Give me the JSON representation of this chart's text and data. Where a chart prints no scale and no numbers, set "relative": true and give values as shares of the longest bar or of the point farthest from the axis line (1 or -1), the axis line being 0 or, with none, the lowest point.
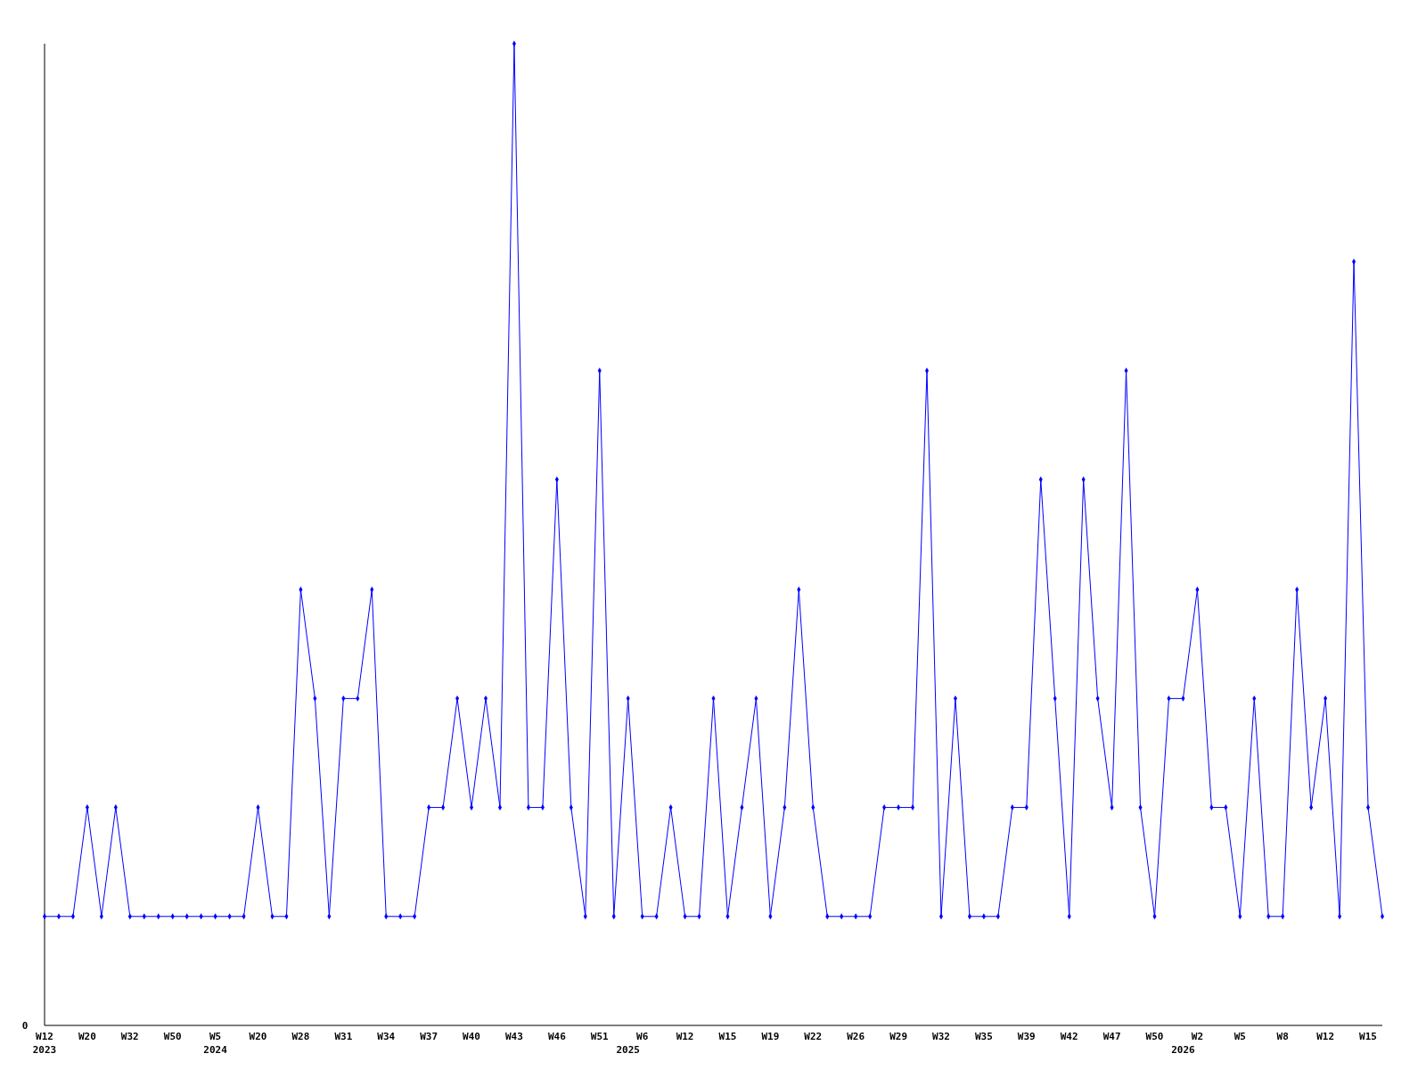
{
  "chart_data": {
    "type": "line",
    "relative": true,
    "marker": "diamond",
    "line_style": "solid",
    "annotations": [
      "0"
    ],
    "categories": [
      "W12\n2023",
      null,
      null,
      "W20",
      null,
      null,
      "W32",
      null,
      null,
      "W50",
      null,
      null,
      "W5\n2024",
      null,
      null,
      "W20",
      null,
      null,
      "W28",
      null,
      null,
      "W31",
      null,
      null,
      "W34",
      null,
      null,
      "W37",
      null,
      null,
      "W40",
      null,
      null,
      "W43",
      null,
      null,
      "W46",
      null,
      null,
      "W51",
      null,
      "\n2025",
      "W6",
      null,
      null,
      "W12",
      null,
      null,
      "W15",
      null,
      null,
      "W19",
      null,
      null,
      "W22",
      null,
      null,
      "W26",
      null,
      null,
      "W29",
      null,
      null,
      "W32",
      null,
      null,
      "W35",
      null,
      null,
      "W39",
      null,
      null,
      "W42",
      null,
      null,
      "W47",
      null,
      null,
      "W50",
      null,
      "\n2026",
      "W2",
      null,
      null,
      "W5",
      null,
      null,
      "W8",
      null,
      null,
      "W12",
      null,
      null,
      "W15",
      null
    ],
    "series": [
      {
        "color": "#0000ff",
        "values": [
          0.111,
          0.111,
          0.111,
          0.222,
          0.111,
          0.222,
          0.111,
          0.111,
          0.111,
          0.111,
          0.111,
          0.111,
          0.111,
          0.111,
          0.111,
          0.222,
          0.111,
          0.111,
          0.444,
          0.333,
          0.111,
          0.333,
          0.333,
          0.444,
          0.111,
          0.111,
          0.111,
          0.222,
          0.222,
          0.333,
          0.222,
          0.333,
          0.222,
          1,
          0.222,
          0.222,
          0.556,
          0.222,
          0.111,
          0.667,
          0.111,
          0.333,
          0.111,
          0.111,
          0.222,
          0.111,
          0.111,
          0.333,
          0.111,
          0.222,
          0.333,
          0.111,
          0.222,
          0.444,
          0.222,
          0.111,
          0.111,
          0.111,
          0.111,
          0.222,
          0.222,
          0.222,
          0.667,
          0.111,
          0.333,
          0.111,
          0.111,
          0.111,
          0.222,
          0.222,
          0.556,
          0.333,
          0.111,
          0.556,
          0.333,
          0.222,
          0.667,
          0.222,
          0.111,
          0.333,
          0.333,
          0.444,
          0.222,
          0.222,
          0.111,
          0.333,
          0.111,
          0.111,
          0.444,
          0.222,
          0.333,
          0.111,
          0.778,
          0.222,
          0.111
        ]
      }
    ]
  }
}
